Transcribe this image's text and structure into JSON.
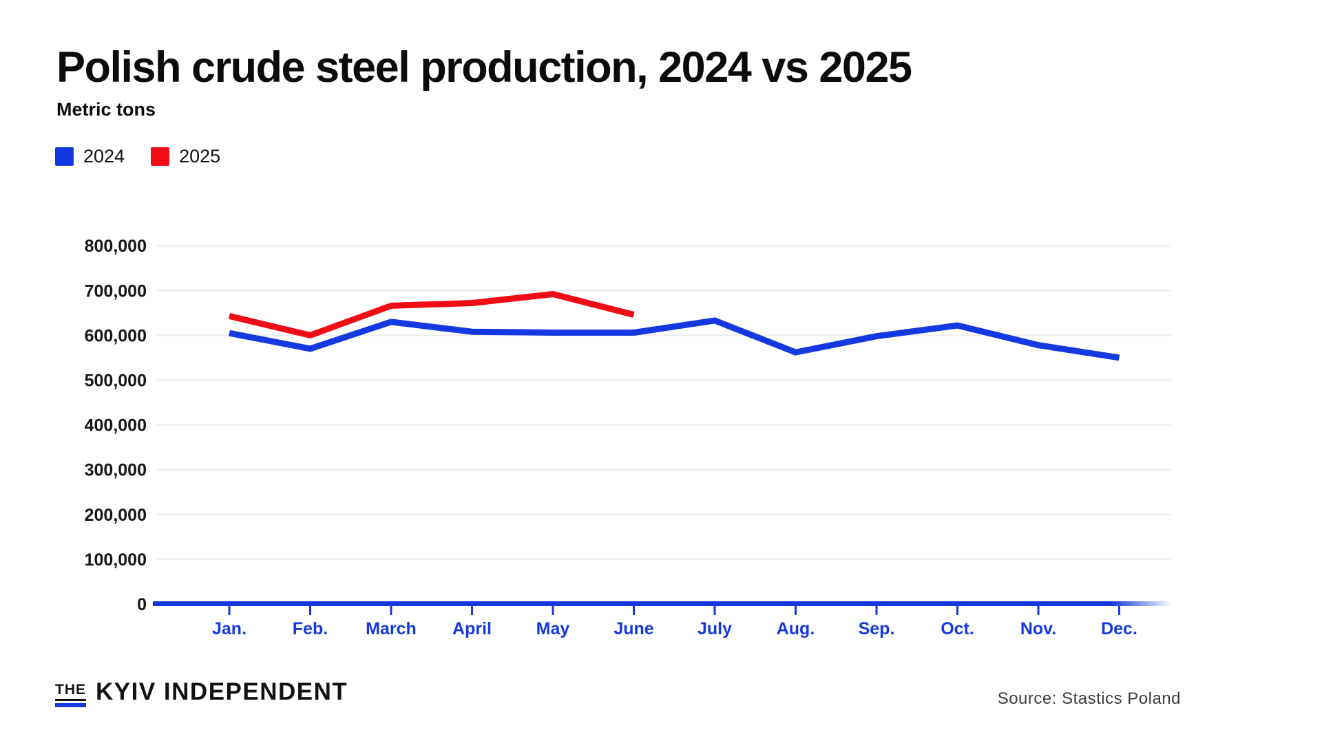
{
  "header": {
    "title": "Polish crude steel production, 2024 vs 2025",
    "subtitle": "Metric tons"
  },
  "chart_data": {
    "type": "line",
    "title": "Polish crude steel production, 2024 vs 2025",
    "ylabel": "Metric tons",
    "categories": [
      "Jan.",
      "Feb.",
      "March",
      "April",
      "May",
      "June",
      "July",
      "Aug.",
      "Sep.",
      "Oct.",
      "Nov.",
      "Dec."
    ],
    "series": [
      {
        "name": "2024",
        "color": "#1539e0",
        "values": [
          605000,
          570000,
          630000,
          608000,
          606000,
          606000,
          633000,
          562000,
          598000,
          622000,
          578000,
          550000
        ]
      },
      {
        "name": "2025",
        "color": "#f20d16",
        "values": [
          643000,
          600000,
          666000,
          672000,
          692000,
          646000
        ]
      }
    ],
    "ylim": [
      0,
      850000
    ],
    "ytick_step": 100000,
    "ytick_labels": [
      "0",
      "100,000",
      "200,000",
      "300,000",
      "400,000",
      "500,000",
      "600,000",
      "700,000",
      "800,000"
    ],
    "grid": "horizontal",
    "legend_position": "top-left",
    "axis_color": "#1539e0",
    "grid_color": "#ececec",
    "tick_label_color": "#161616"
  },
  "footer": {
    "logo_the": "THE",
    "logo_name": "KYIV INDEPENDENT",
    "source": "Source: Stastics Poland"
  }
}
